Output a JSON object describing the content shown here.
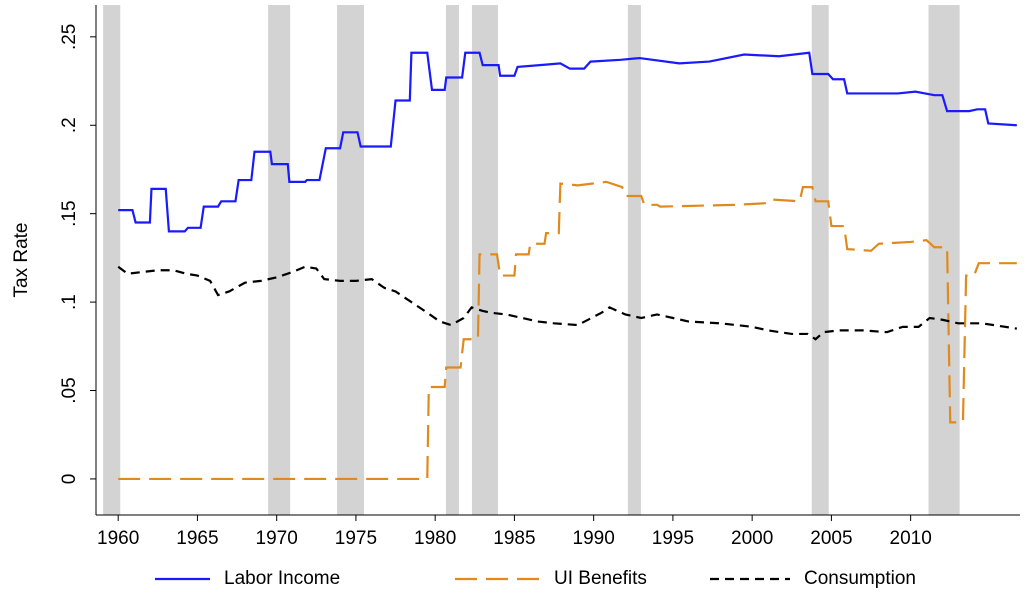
{
  "chart_data": {
    "type": "line",
    "y_label": "Tax Rate",
    "xlim": [
      1958.6,
      2016.9
    ],
    "ylim": [
      -0.0204,
      0.268
    ],
    "xticks": [
      1960,
      1965,
      1970,
      1975,
      1980,
      1985,
      1990,
      1995,
      2000,
      2005,
      2010
    ],
    "yticks": [
      0,
      {
        "value": 0.05,
        "label": ".05"
      },
      {
        "value": 0.1,
        "label": ".1"
      },
      {
        "value": 0.15,
        "label": ".15"
      },
      {
        "value": 0.2,
        "label": ".2"
      },
      {
        "value": 0.25,
        "label": ".25"
      }
    ],
    "grid": false,
    "legend": "bottom",
    "shade_color": "#d3d3d3",
    "shaded_periods": [
      [
        1959.05,
        1960.13
      ],
      [
        1969.46,
        1970.85
      ],
      [
        1973.81,
        1975.51
      ],
      [
        1980.68,
        1981.5
      ],
      [
        1982.32,
        1983.96
      ],
      [
        1992.16,
        1992.98
      ],
      [
        2003.76,
        2004.83
      ],
      [
        2011.13,
        2013.09
      ]
    ],
    "series": [
      {
        "name": "Labor Income",
        "color": "#1a1aff",
        "dash": "solid",
        "x": [
          1960.0,
          1960.9,
          1961.1,
          1962.0,
          1962.1,
          1963.0,
          1963.2,
          1964.2,
          1964.4,
          1965.2,
          1965.4,
          1966.3,
          1966.5,
          1967.4,
          1967.6,
          1968.4,
          1968.6,
          1969.6,
          1969.7,
          1970.7,
          1970.8,
          1971.8,
          1971.9,
          1972.7,
          1973.1,
          1974.0,
          1974.2,
          1975.1,
          1975.3,
          1977.2,
          1977.5,
          1978.4,
          1978.5,
          1979.5,
          1979.8,
          1980.6,
          1980.7,
          1981.7,
          1981.9,
          1982.8,
          1983.0,
          1984.0,
          1984.1,
          1985.0,
          1985.2,
          1986.6,
          1987.9,
          1988.5,
          1989.4,
          1989.8,
          1991.7,
          1992.9,
          1995.4,
          1997.3,
          1999.5,
          2001.7,
          2003.6,
          2003.8,
          2004.8,
          2005.1,
          2005.8,
          2006.0,
          2009.2,
          2010.3,
          2011.5,
          2012.0,
          2012.3,
          2013.7,
          2014.2,
          2014.7,
          2014.9,
          2016.7
        ],
        "values": [
          0.152,
          0.152,
          0.145,
          0.145,
          0.164,
          0.164,
          0.14,
          0.14,
          0.142,
          0.142,
          0.154,
          0.154,
          0.157,
          0.157,
          0.169,
          0.169,
          0.185,
          0.185,
          0.178,
          0.178,
          0.168,
          0.168,
          0.169,
          0.169,
          0.187,
          0.187,
          0.196,
          0.196,
          0.188,
          0.188,
          0.214,
          0.214,
          0.241,
          0.241,
          0.22,
          0.22,
          0.227,
          0.227,
          0.241,
          0.241,
          0.234,
          0.234,
          0.228,
          0.228,
          0.233,
          0.234,
          0.235,
          0.232,
          0.232,
          0.236,
          0.237,
          0.238,
          0.235,
          0.236,
          0.24,
          0.239,
          0.241,
          0.229,
          0.229,
          0.226,
          0.226,
          0.218,
          0.218,
          0.219,
          0.217,
          0.217,
          0.208,
          0.208,
          0.209,
          0.209,
          0.201,
          0.2
        ]
      },
      {
        "name": "UI Benefits",
        "color": "#e08a1e",
        "dash": "longdash",
        "x": [
          1960,
          1979.5,
          1979.6,
          1980.6,
          1980.7,
          1981.6,
          1981.8,
          1982.7,
          1982.8,
          1983.9,
          1984.1,
          1985.0,
          1985.1,
          1985.9,
          1986.0,
          1986.9,
          1987.0,
          1987.8,
          1987.9,
          1989.0,
          1990.8,
          1991.8,
          1992.0,
          1993.0,
          1993.2,
          1994.0,
          1994.2,
          1999.0,
          2001.0,
          2001.2,
          2003.0,
          2003.2,
          2003.8,
          2004.0,
          2004.8,
          2005.0,
          2005.8,
          2006.0,
          2007.5,
          2008.0,
          2010.0,
          2011.0,
          2011.5,
          2012.3,
          2012.5,
          2013.3,
          2013.5,
          2014.0,
          2014.3,
          2016.7
        ],
        "values": [
          0,
          0,
          0.052,
          0.052,
          0.063,
          0.063,
          0.079,
          0.079,
          0.127,
          0.127,
          0.115,
          0.115,
          0.127,
          0.127,
          0.133,
          0.133,
          0.139,
          0.139,
          0.167,
          0.166,
          0.168,
          0.165,
          0.16,
          0.16,
          0.155,
          0.155,
          0.154,
          0.155,
          0.156,
          0.158,
          0.157,
          0.165,
          0.165,
          0.157,
          0.157,
          0.143,
          0.143,
          0.13,
          0.129,
          0.133,
          0.134,
          0.135,
          0.131,
          0.131,
          0.032,
          0.032,
          0.115,
          0.115,
          0.122,
          0.122
        ]
      },
      {
        "name": "Consumption",
        "color": "#000000",
        "dash": "shortdash",
        "x": [
          1960,
          1960.6,
          1961.5,
          1962.5,
          1963.5,
          1964.3,
          1965,
          1965.8,
          1966.3,
          1967,
          1968,
          1969,
          1970,
          1971,
          1971.8,
          1972.5,
          1973,
          1974,
          1975,
          1976,
          1976.8,
          1977.5,
          1978.5,
          1979.5,
          1980.3,
          1981,
          1981.8,
          1982.3,
          1983,
          1983.5,
          1984.5,
          1985.5,
          1986.5,
          1987.5,
          1989,
          1990.5,
          1991,
          1992,
          1993,
          1994,
          1995,
          1996,
          1998,
          2000,
          2001,
          2002.5,
          2003.5,
          2004.0,
          2004.5,
          2005.5,
          2007,
          2008.5,
          2009.5,
          2010.5,
          2011.2,
          2012,
          2013,
          2014.5,
          2016.7
        ],
        "values": [
          0.12,
          0.116,
          0.117,
          0.118,
          0.118,
          0.116,
          0.115,
          0.112,
          0.104,
          0.106,
          0.111,
          0.112,
          0.114,
          0.117,
          0.12,
          0.119,
          0.113,
          0.112,
          0.112,
          0.113,
          0.108,
          0.106,
          0.1,
          0.094,
          0.089,
          0.087,
          0.091,
          0.097,
          0.095,
          0.094,
          0.093,
          0.091,
          0.089,
          0.088,
          0.087,
          0.094,
          0.097,
          0.093,
          0.091,
          0.093,
          0.091,
          0.089,
          0.088,
          0.086,
          0.084,
          0.082,
          0.082,
          0.079,
          0.083,
          0.084,
          0.084,
          0.083,
          0.086,
          0.086,
          0.091,
          0.09,
          0.088,
          0.088,
          0.085
        ]
      }
    ]
  }
}
